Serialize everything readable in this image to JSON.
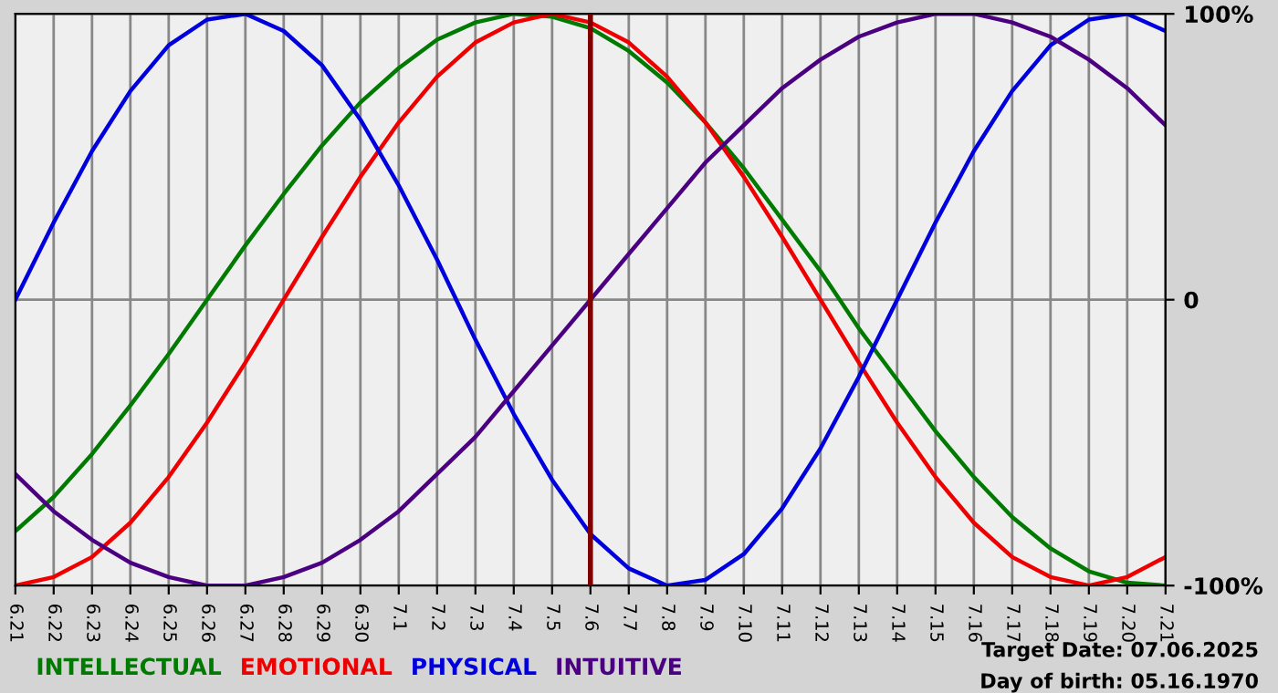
{
  "chart_data": {
    "type": "line",
    "categories": [
      "6.21",
      "6.22",
      "6.23",
      "6.24",
      "6.25",
      "6.26",
      "6.27",
      "6.28",
      "6.29",
      "6.30",
      "7.1",
      "7.2",
      "7.3",
      "7.4",
      "7.5",
      "7.6",
      "7.7",
      "7.8",
      "7.9",
      "7.10",
      "7.11",
      "7.12",
      "7.13",
      "7.14",
      "7.15",
      "7.16",
      "7.17",
      "7.18",
      "7.19",
      "7.20",
      "7.21"
    ],
    "series": [
      {
        "name": "INTELLECTUAL",
        "color": "#007a00",
        "values": [
          -81,
          -69,
          -54,
          -37,
          -19,
          0,
          19,
          37,
          54,
          69,
          81,
          91,
          97,
          100,
          99,
          95,
          87,
          76,
          62,
          46,
          28,
          10,
          -10,
          -28,
          -46,
          -62,
          -76,
          -87,
          -95,
          -99,
          -100
        ]
      },
      {
        "name": "EMOTIONAL",
        "color": "#ee0000",
        "values": [
          -100,
          -97,
          -90,
          -78,
          -62,
          -43,
          -22,
          0,
          22,
          43,
          62,
          78,
          90,
          97,
          100,
          97,
          90,
          78,
          62,
          43,
          22,
          0,
          -22,
          -43,
          -62,
          -78,
          -90,
          -97,
          -100,
          -97,
          -90
        ]
      },
      {
        "name": "PHYSICAL",
        "color": "#0000dd",
        "values": [
          0,
          27,
          52,
          73,
          89,
          98,
          100,
          94,
          82,
          63,
          40,
          14,
          -14,
          -40,
          -63,
          -82,
          -94,
          -100,
          -98,
          -89,
          -73,
          -52,
          -27,
          0,
          27,
          52,
          73,
          89,
          98,
          100,
          94
        ]
      },
      {
        "name": "INTUITIVE",
        "color": "#4b0082",
        "values": [
          -61,
          -74,
          -84,
          -92,
          -97,
          -100,
          -100,
          -97,
          -92,
          -84,
          -74,
          -61,
          -48,
          -32,
          -16,
          0,
          16,
          32,
          48,
          61,
          74,
          84,
          92,
          97,
          100,
          100,
          97,
          92,
          84,
          74,
          61
        ]
      }
    ],
    "ylim": [
      -100,
      100
    ],
    "yticks": [
      {
        "value": -100,
        "label": "-100%"
      },
      0,
      {
        "value": 100,
        "label": "100%"
      }
    ],
    "grid": true,
    "legend": "bottom left",
    "ref_lines": [
      {
        "axis": "x",
        "value": "7.6",
        "color": "#800000"
      }
    ],
    "annotations": [
      "Target Date: 07.06.2025",
      "Day of birth: 05.16.1970"
    ]
  }
}
